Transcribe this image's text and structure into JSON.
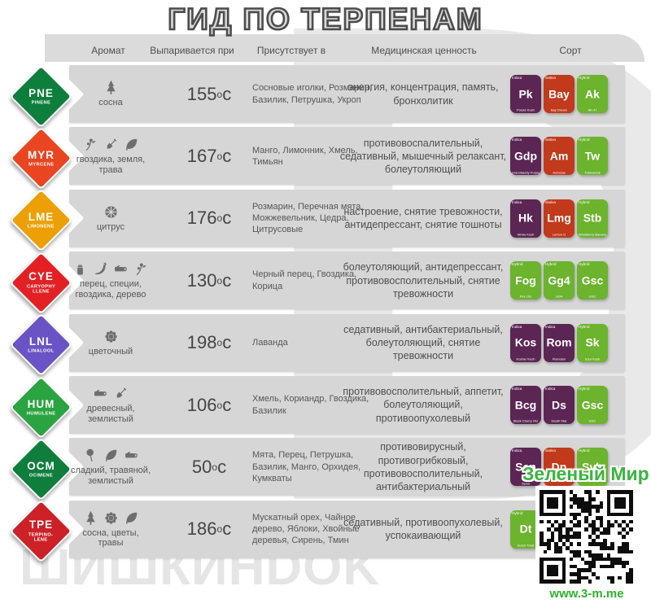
{
  "title": "ГИД ПО ТЕРПЕНАМ",
  "columns": {
    "aroma": "Аромат",
    "evaporates": "Выпаривается при",
    "present": "Присутствует в",
    "medical": "Медицинская ценность",
    "strain": "Сорт"
  },
  "units": {
    "degree": "o",
    "celsius": "c"
  },
  "strain_colors": {
    "Indica": "#5b2653",
    "Sativa": "#c03a1b",
    "Hybrid": "#6cb32e"
  },
  "rows": [
    {
      "code": "PNE",
      "name": "PINENE",
      "color": "#0e7e3c",
      "aroma": {
        "icons": [
          "pine-tree-icon"
        ],
        "label": "сосна"
      },
      "temp": "155",
      "present": "Сосновые иголки, Розмарин, Базилик, Петрушка, Укроп",
      "medical": "энергия, концентрация, память,  бронхолитик",
      "strains": [
        {
          "abbr": "Pk",
          "type": "Indica",
          "name": "Purple Kush"
        },
        {
          "abbr": "Bay",
          "type": "Sativa",
          "name": "Bay Dream"
        },
        {
          "abbr": "Ak",
          "type": "Hybrid",
          "name": "AK-47"
        }
      ]
    },
    {
      "code": "MYR",
      "name": "MYRCENE",
      "color": "#ea4521",
      "aroma": {
        "icons": [
          "clove-sprig-icon",
          "shovel-icon",
          "leaf-icon"
        ],
        "label": "гвоздика, земля, трава"
      },
      "temp": "167",
      "present": "Манго, Лимонник, Хмель, Тимьян",
      "medical": "противовоспалительный, седативный, мышечный релаксант, болеутоляющий",
      "strains": [
        {
          "abbr": "Gdp",
          "type": "Indica",
          "name": "Granddaddy Purple"
        },
        {
          "abbr": "Am",
          "type": "Sativa",
          "name": "Amnesia"
        },
        {
          "abbr": "Tw",
          "type": "Hybrid",
          "name": "Trainwreck"
        }
      ]
    },
    {
      "code": "LME",
      "name": "LIMONENE",
      "color": "#eca006",
      "aroma": {
        "icons": [
          "citrus-icon"
        ],
        "label": "цитрус"
      },
      "temp": "176",
      "present": "Розмарин, Перечная мята, Можжевельник, Цедра, Цитрусовые",
      "medical": "настроение, снятие тревожности, антидепрессант, снятие тошноты",
      "strains": [
        {
          "abbr": "Hk",
          "type": "Indica",
          "name": "Hindu Kush"
        },
        {
          "abbr": "Lmg",
          "type": "Sativa",
          "name": "Lemon G"
        },
        {
          "abbr": "Stb",
          "type": "Hybrid",
          "name": "Strawberry Banana"
        }
      ]
    },
    {
      "code": "CYE",
      "name": "CARYOPHY\nLLENE",
      "color": "#e32125",
      "aroma": {
        "icons": [
          "pepper-shaker-icon",
          "chili-pepper-icon",
          "wood-log-icon",
          "clove-sprig-icon"
        ],
        "label": "перец, специи,\nгвоздика, дерево"
      },
      "temp": "130",
      "present": "Черный перец, Гвоздика, Корица",
      "medical": "болеутоляющий, антидепрессант, противовосполительный, снятие тревожности",
      "strains": [
        {
          "abbr": "Fog",
          "type": "Hybrid",
          "name": "Fire OG"
        },
        {
          "abbr": "Gg4",
          "type": "Hybrid",
          "name": "GG4"
        },
        {
          "abbr": "Gsc",
          "type": "Hybrid",
          "name": "GSC"
        }
      ]
    },
    {
      "code": "LNL",
      "name": "LINALOOL",
      "color": "#6a53c4",
      "aroma": {
        "icons": [
          "flower-icon"
        ],
        "label": "цветочный"
      },
      "temp": "198",
      "present": "Лаванда",
      "medical": "седативный, антибактериальный, болеутоляющий, снятие тревожности",
      "strains": [
        {
          "abbr": "Kos",
          "type": "Indica",
          "name": "Kosher Kush"
        },
        {
          "abbr": "Rom",
          "type": "Indica",
          "name": "Romulan"
        },
        {
          "abbr": "Sk",
          "type": "Hybrid",
          "name": "Sour Kush"
        }
      ]
    },
    {
      "code": "HUM",
      "name": "HUMULENE",
      "color": "#2aa341",
      "aroma": {
        "icons": [
          "wood-log-icon",
          "shovel-icon"
        ],
        "label": "древесный,\nземлистый"
      },
      "temp": "106",
      "present": "Хмель, Кориандр, Гвоздика, Базилик",
      "medical": "противовосполительный, аппетит, болеутоляющий, противоопухолевый",
      "strains": [
        {
          "abbr": "Bcg",
          "type": "Indica",
          "name": "Black Cherry OG"
        },
        {
          "abbr": "Ds",
          "type": "Indica",
          "name": "Death Star"
        },
        {
          "abbr": "Gsc",
          "type": "Hybrid",
          "name": "GSC"
        }
      ]
    },
    {
      "code": "OCM",
      "name": "OCIMENE",
      "color": "#0f7e3c",
      "aroma": {
        "icons": [
          "lollipop-icon",
          "leaf-icon",
          "wood-log-icon"
        ],
        "label": "сладкий, травяной,\nземлистый"
      },
      "temp": "50",
      "present": "Мята, Перец, Петрушка, Базилик, Манго, Орхидея, Кумкваты",
      "medical": "противовирусный, противогрибковый, противовосполительный, антибактериальный",
      "strains": [
        {
          "abbr": "Sen",
          "type": "Indica",
          "name": "Sensi"
        },
        {
          "abbr": "Dp",
          "type": "Sativa",
          "name": ""
        },
        {
          "abbr": "Svb",
          "type": "Hybrid",
          "name": ""
        }
      ]
    },
    {
      "code": "TPE",
      "name": "TERPINO-\nLENE",
      "color": "#cd2128",
      "aroma": {
        "icons": [
          "pine-tree-icon",
          "flower-icon",
          "leaf-icon"
        ],
        "label": "сосна, цветы, травы"
      },
      "temp": "186",
      "present": "Мускатный орех, Чайное дерево, Яблоки, Хвойные деревья, Сирень, Тмин",
      "medical": "седативный, противоопухолевый, успокаивающий",
      "strains": [
        {
          "abbr": "Dt",
          "type": "Hybrid",
          "name": "Dutch Treat"
        }
      ]
    }
  ],
  "footer": {
    "watermark": "ШИШКИНDOK",
    "big_letter": "D",
    "brand": "Зеленый Мир",
    "url": "www.3-m.me"
  }
}
